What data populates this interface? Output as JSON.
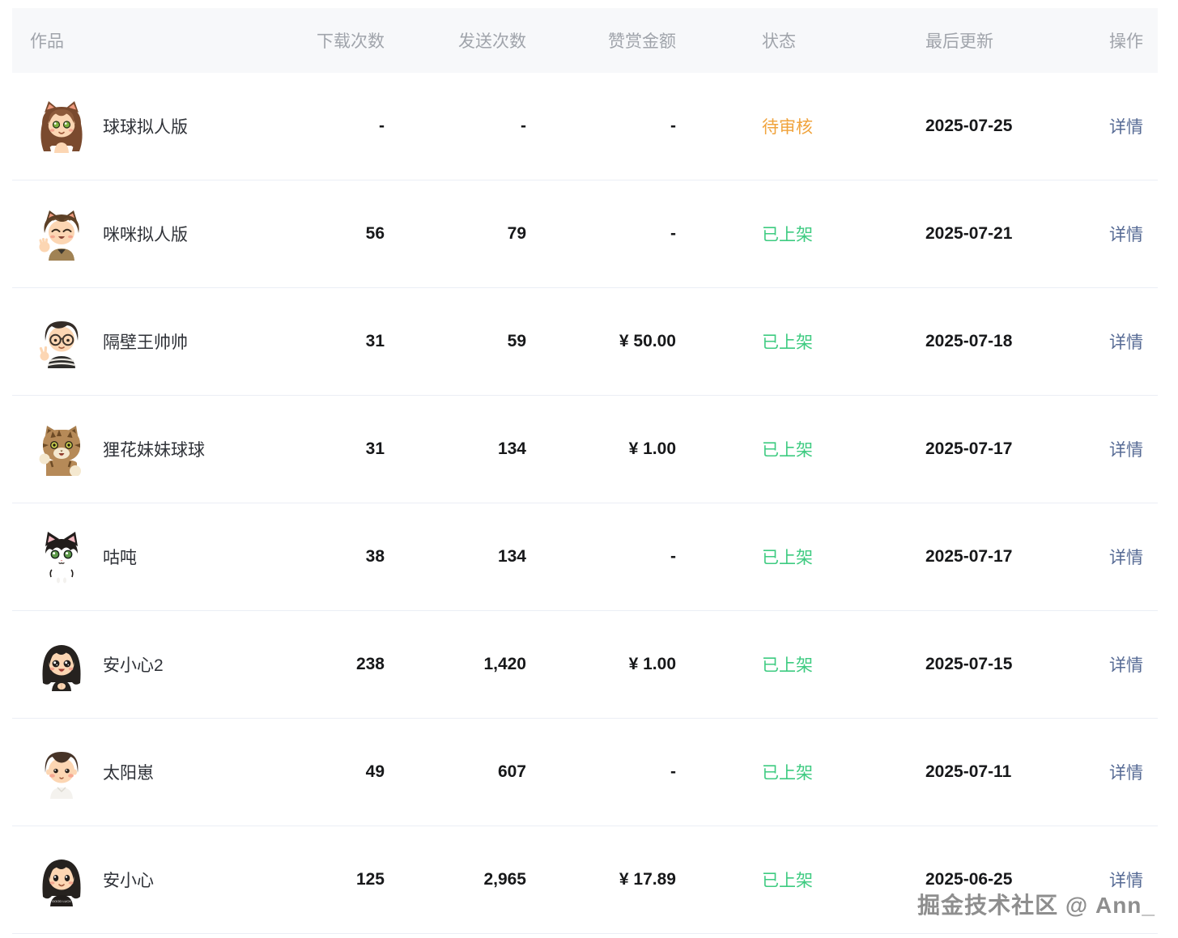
{
  "table": {
    "columns": [
      {
        "key": "work",
        "label": "作品"
      },
      {
        "key": "downloads",
        "label": "下载次数"
      },
      {
        "key": "sends",
        "label": "发送次数"
      },
      {
        "key": "reward",
        "label": "赞赏金额"
      },
      {
        "key": "status",
        "label": "状态"
      },
      {
        "key": "updated",
        "label": "最后更新"
      },
      {
        "key": "action",
        "label": "操作"
      }
    ],
    "rows": [
      {
        "name": "球球拟人版",
        "avatar_icon": "cat-girl-avatar",
        "downloads": "-",
        "sends": "-",
        "reward": "-",
        "status": "待审核",
        "status_type": "pending",
        "updated": "2025-07-25",
        "action": "详情"
      },
      {
        "name": "咪咪拟人版",
        "avatar_icon": "cat-boy-avatar",
        "downloads": "56",
        "sends": "79",
        "reward": "-",
        "status": "已上架",
        "status_type": "live",
        "updated": "2025-07-21",
        "action": "详情"
      },
      {
        "name": "隔壁王帅帅",
        "avatar_icon": "glasses-man-avatar",
        "downloads": "31",
        "sends": "59",
        "reward": "¥ 50.00",
        "status": "已上架",
        "status_type": "live",
        "updated": "2025-07-18",
        "action": "详情"
      },
      {
        "name": "狸花妹妹球球",
        "avatar_icon": "tabby-cat-avatar",
        "downloads": "31",
        "sends": "134",
        "reward": "¥ 1.00",
        "status": "已上架",
        "status_type": "live",
        "updated": "2025-07-17",
        "action": "详情"
      },
      {
        "name": "咕吨",
        "avatar_icon": "tuxedo-cat-avatar",
        "downloads": "38",
        "sends": "134",
        "reward": "-",
        "status": "已上架",
        "status_type": "live",
        "updated": "2025-07-17",
        "action": "详情"
      },
      {
        "name": "安小心2",
        "avatar_icon": "bob-girl-open-avatar",
        "downloads": "238",
        "sends": "1,420",
        "reward": "¥ 1.00",
        "status": "已上架",
        "status_type": "live",
        "updated": "2025-07-15",
        "action": "详情"
      },
      {
        "name": "太阳崽",
        "avatar_icon": "sun-boy-avatar",
        "downloads": "49",
        "sends": "607",
        "reward": "-",
        "status": "已上架",
        "status_type": "live",
        "updated": "2025-07-11",
        "action": "详情"
      },
      {
        "name": "安小心",
        "avatar_icon": "bob-girl-black-avatar",
        "downloads": "125",
        "sends": "2,965",
        "reward": "¥ 17.89",
        "status": "已上架",
        "status_type": "live",
        "updated": "2025-06-25",
        "action": "详情"
      }
    ]
  },
  "colors": {
    "status_pending": "#f0a33c",
    "status_live": "#3ecb81",
    "action_link": "#576b95",
    "header_bg": "#f7f8fa",
    "header_text": "#a0a4ab"
  },
  "watermark": "掘金技术社区 @ Ann_"
}
